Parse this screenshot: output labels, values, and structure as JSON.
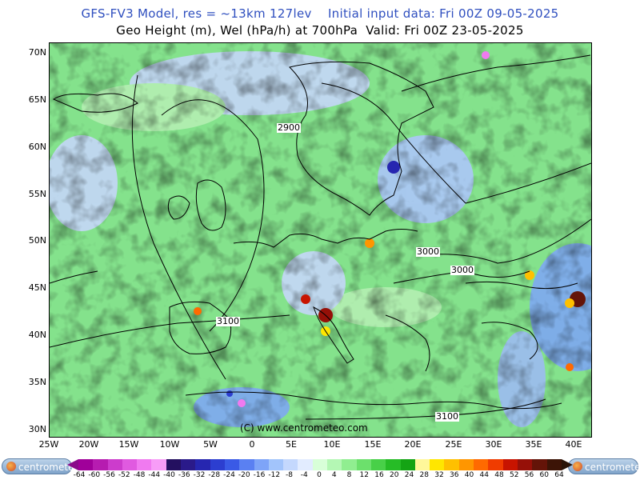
{
  "header": {
    "line1": "GFS-FV3 Model, res = ~13km 127lev    Initial input data: Fri 00Z 09-05-2025",
    "line2": "Geo Height (m), Wel (hPa/h) at 700hPa  Valid: Fri 00Z 23-05-2025"
  },
  "map": {
    "lat_labels": [
      "70N",
      "65N",
      "60N",
      "55N",
      "50N",
      "45N",
      "40N",
      "35N",
      "30N"
    ],
    "lon_labels": [
      "25W",
      "20W",
      "15W",
      "10W",
      "5W",
      "0",
      "5E",
      "10E",
      "15E",
      "20E",
      "25E",
      "30E",
      "35E",
      "40E"
    ],
    "contour_labels": [
      "2900",
      "3000",
      "3000",
      "3100",
      "3100"
    ],
    "credit": "(C) www.centrometeo.com"
  },
  "legend": {
    "ticks": [
      "-64",
      "-60",
      "-56",
      "-52",
      "-48",
      "-44",
      "-40",
      "-36",
      "-32",
      "-28",
      "-24",
      "-20",
      "-16",
      "-12",
      "-8",
      "-4",
      "0",
      "4",
      "8",
      "12",
      "16",
      "20",
      "24",
      "28",
      "32",
      "36",
      "40",
      "44",
      "48",
      "52",
      "56",
      "60",
      "64"
    ],
    "colors": [
      "#a0009a",
      "#b61cb0",
      "#cc3ccc",
      "#e05ae0",
      "#f07af0",
      "#f79cf7",
      "#241060",
      "#2a1a8a",
      "#2626b0",
      "#2c3ed0",
      "#3a5ae6",
      "#5a80f2",
      "#7ea4f8",
      "#a2c4fb",
      "#c4d8fd",
      "#e2ecff",
      "#d8ffd8",
      "#b4f7b4",
      "#90ee90",
      "#6ce06c",
      "#48d048",
      "#26bc26",
      "#14a414",
      "#fff79a",
      "#ffe600",
      "#ffc000",
      "#ff9600",
      "#ff6a00",
      "#f03c00",
      "#c81400",
      "#961008",
      "#641408",
      "#3c1406"
    ]
  },
  "logos": {
    "left": "centrometeo",
    "right": "centrometeo"
  }
}
